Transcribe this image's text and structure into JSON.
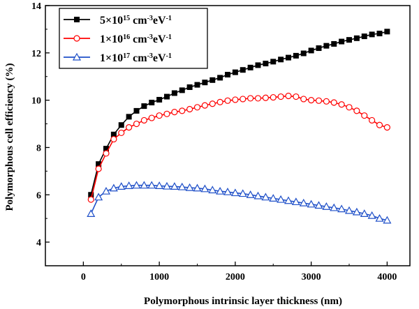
{
  "chart_data": {
    "type": "line",
    "title": "",
    "xlabel": "Polymorphous intrinsic layer thickness (nm)",
    "ylabel": "Polymorphous cell efficiency (%)",
    "xlim": [
      -500,
      4300
    ],
    "ylim": [
      3,
      14
    ],
    "xticks": [
      0,
      1000,
      2000,
      3000,
      4000
    ],
    "yticks": [
      4,
      6,
      8,
      10,
      12,
      14
    ],
    "grid": false,
    "legend_position": "top-left",
    "x": [
      100,
      200,
      300,
      400,
      500,
      600,
      700,
      800,
      900,
      1000,
      1100,
      1200,
      1300,
      1400,
      1500,
      1600,
      1700,
      1800,
      1900,
      2000,
      2100,
      2200,
      2300,
      2400,
      2500,
      2600,
      2700,
      2800,
      2900,
      3000,
      3100,
      3200,
      3300,
      3400,
      3500,
      3600,
      3700,
      3800,
      3900,
      4000
    ],
    "series": [
      {
        "name_parts": [
          "5×10",
          "15",
          " cm",
          "-3",
          "eV",
          "-1"
        ],
        "color": "#000000",
        "marker": "square-filled",
        "values": [
          6.0,
          7.3,
          7.95,
          8.55,
          8.95,
          9.3,
          9.55,
          9.75,
          9.9,
          10.02,
          10.15,
          10.3,
          10.42,
          10.55,
          10.65,
          10.75,
          10.85,
          10.95,
          11.08,
          11.18,
          11.28,
          11.38,
          11.48,
          11.55,
          11.63,
          11.72,
          11.8,
          11.88,
          11.98,
          12.1,
          12.2,
          12.3,
          12.38,
          12.48,
          12.55,
          12.62,
          12.7,
          12.78,
          12.82,
          12.9
        ]
      },
      {
        "name_parts": [
          "1×10",
          "16",
          " cm",
          "-3",
          "eV",
          "-1"
        ],
        "color": "#ff0000",
        "marker": "circle-open",
        "values": [
          5.8,
          7.1,
          7.75,
          8.35,
          8.62,
          8.85,
          9.0,
          9.15,
          9.25,
          9.35,
          9.42,
          9.5,
          9.55,
          9.62,
          9.7,
          9.78,
          9.85,
          9.92,
          9.98,
          10.02,
          10.05,
          10.08,
          10.08,
          10.1,
          10.12,
          10.15,
          10.18,
          10.15,
          10.05,
          10.0,
          9.98,
          9.95,
          9.9,
          9.82,
          9.7,
          9.55,
          9.35,
          9.15,
          8.95,
          8.85
        ]
      },
      {
        "name_parts": [
          "1×10",
          "17",
          " cm",
          "-3",
          "eV",
          "-1"
        ],
        "color": "#1e4fc8",
        "marker": "triangle-open",
        "values": [
          5.2,
          5.9,
          6.15,
          6.28,
          6.35,
          6.38,
          6.4,
          6.4,
          6.4,
          6.38,
          6.36,
          6.35,
          6.33,
          6.3,
          6.28,
          6.25,
          6.2,
          6.15,
          6.12,
          6.08,
          6.05,
          6.0,
          5.95,
          5.9,
          5.85,
          5.8,
          5.75,
          5.7,
          5.65,
          5.6,
          5.55,
          5.5,
          5.45,
          5.4,
          5.33,
          5.27,
          5.2,
          5.12,
          5.0,
          4.92
        ]
      }
    ]
  }
}
